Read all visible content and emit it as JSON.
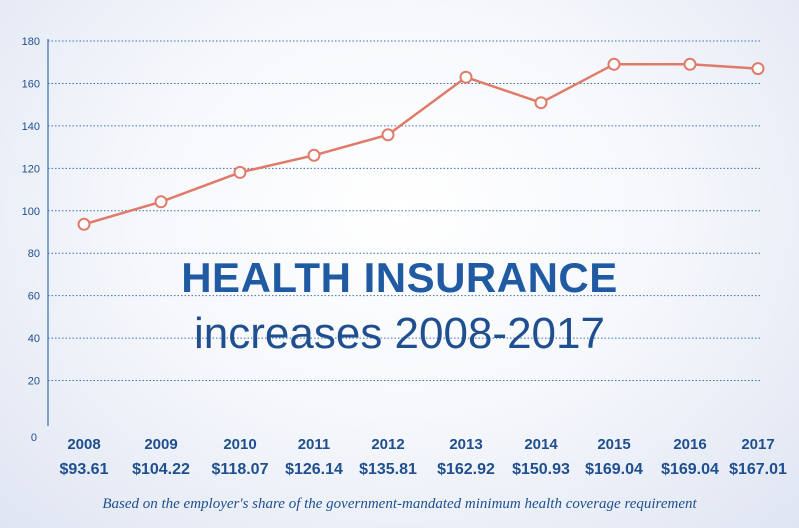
{
  "chart_data": {
    "type": "line",
    "title": "HEALTH INSURANCE",
    "subtitle": "increases 2008-2017",
    "footnote": "Based on the employer's share of the government-mandated minimum health coverage requirement",
    "x": [
      "2008",
      "2009",
      "2010",
      "2011",
      "2012",
      "2013",
      "2014",
      "2015",
      "2016",
      "2017"
    ],
    "value_labels": [
      "$93.61",
      "$104.22",
      "$118.07",
      "$126.14",
      "$135.81",
      "$162.92",
      "$150.93",
      "$169.04",
      "$169.04",
      "$167.01"
    ],
    "values": [
      93.61,
      104.22,
      118.07,
      126.14,
      135.81,
      162.92,
      150.93,
      169.04,
      169.04,
      167.01
    ],
    "ylim": [
      0,
      180
    ],
    "yticks": [
      "0",
      "20",
      "40",
      "60",
      "80",
      "100",
      "120",
      "140",
      "160",
      "180"
    ],
    "grid": true,
    "line_color": "#e07b6a",
    "marker_fill": "#ffffff",
    "text_color": "#1f4f8f",
    "grid_color": "#3a6fb5"
  }
}
